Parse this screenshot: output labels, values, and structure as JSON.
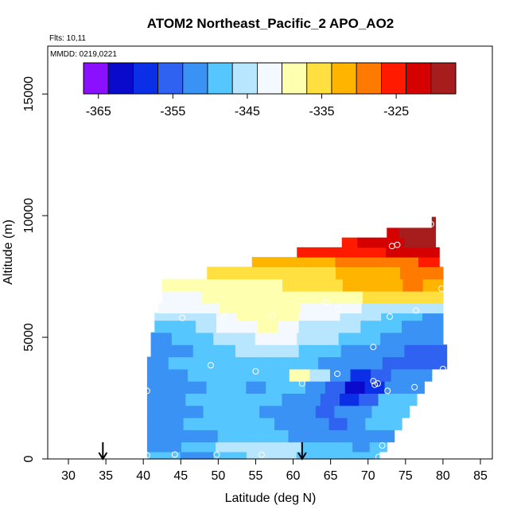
{
  "chart_data": {
    "type": "heatmap",
    "title": "ATOM2 Northeast_Pacific_2 APO_AO2",
    "flights_label": "Flts: 10,11",
    "dates_label": "MMDD: 0219,0221",
    "xlabel": "Latitude (deg N)",
    "ylabel": "Altitude (m)",
    "xlim": [
      30,
      85
    ],
    "ylim": [
      0,
      17000
    ],
    "x_ticks": [
      30,
      35,
      40,
      45,
      50,
      55,
      60,
      65,
      70,
      75,
      80,
      85
    ],
    "x_tick_labels": [
      "30",
      "35",
      "40",
      "45",
      "50",
      "55",
      "60",
      "65",
      "70",
      "75",
      "80",
      "85"
    ],
    "y_ticks": [
      0,
      5000,
      10000,
      15000
    ],
    "y_tick_labels": [
      "0",
      "5000",
      "10000",
      "15000"
    ],
    "colorbar": {
      "range": [
        -367,
        -317
      ],
      "colors": [
        "#8b10ff",
        "#0a0acc",
        "#0a2fe6",
        "#2f62f0",
        "#3a92f5",
        "#56c6ff",
        "#b8e6ff",
        "#f4f9ff",
        "#ffffb0",
        "#ffe040",
        "#ffb400",
        "#ff7a00",
        "#ff1a00",
        "#d50000",
        "#a71c1c"
      ],
      "ticks": [
        -365,
        -355,
        -345,
        -335,
        -325
      ],
      "tick_labels": [
        "-365",
        "-355",
        "-345",
        "-335",
        "-325"
      ]
    },
    "layers": [
      {
        "alt": [
          0,
          300
        ],
        "lat": [
          40.5,
          71.5
        ],
        "values": [
          -350,
          -350,
          -351,
          -352,
          -349,
          -348,
          -347,
          -346,
          -347,
          -349,
          -350,
          -350,
          -349,
          -350
        ]
      },
      {
        "alt": [
          300,
          700
        ],
        "lat": [
          40.5,
          72.5
        ],
        "values": [
          -352,
          -352,
          -350,
          -348,
          -346,
          -345,
          -344,
          -345,
          -347,
          -348,
          -349,
          -350,
          -351,
          -350
        ]
      },
      {
        "alt": [
          700,
          1200
        ],
        "lat": [
          40.5,
          73.5
        ],
        "values": [
          -353,
          -353,
          -352,
          -351,
          -350,
          -349,
          -349,
          -350,
          -351,
          -352,
          -353,
          -353,
          -352,
          -351
        ]
      },
      {
        "alt": [
          1200,
          1700
        ],
        "lat": [
          40.5,
          74.5
        ],
        "values": [
          -352,
          -351,
          -350,
          -350,
          -349,
          -350,
          -350,
          -351,
          -352,
          -353,
          -354,
          -353,
          -350,
          -349
        ]
      },
      {
        "alt": [
          1700,
          2200
        ],
        "lat": [
          40.5,
          75.5
        ],
        "values": [
          -352,
          -351,
          -351,
          -350,
          -350,
          -350,
          -351,
          -352,
          -353,
          -354,
          -353,
          -352,
          -350,
          -349
        ]
      },
      {
        "alt": [
          2200,
          2700
        ],
        "lat": [
          40.5,
          76.5
        ],
        "values": [
          -351,
          -351,
          -350,
          -349,
          -349,
          -350,
          -350,
          -352,
          -353,
          -356,
          -360,
          -357,
          -350,
          -349
        ]
      },
      {
        "alt": [
          2700,
          3200
        ],
        "lat": [
          40.5,
          77.5
        ],
        "values": [
          -352,
          -351,
          -351,
          -350,
          -350,
          -351,
          -350,
          -349,
          -351,
          -356,
          -362,
          -358,
          -351,
          -352
        ]
      },
      {
        "alt": [
          3200,
          3700
        ],
        "lat": [
          40.5,
          78.5
        ],
        "values": [
          -351,
          -351,
          -350,
          -350,
          -350,
          -350,
          -349,
          -339,
          -344,
          -352,
          -358,
          -354,
          -352,
          -353
        ]
      },
      {
        "alt": [
          3700,
          4200
        ],
        "lat": [
          40.5,
          80.5
        ],
        "values": [
          -351,
          -350,
          -350,
          -349,
          -349,
          -348,
          -349,
          -350,
          -351,
          -352,
          -353,
          -354,
          -355,
          -356
        ]
      },
      {
        "alt": [
          4200,
          4700
        ],
        "lat": [
          41,
          80.5
        ],
        "values": [
          -352,
          -351,
          -350,
          -348,
          -346,
          -344,
          -346,
          -348,
          -350,
          -351,
          -352,
          -353,
          -354,
          -355
        ]
      },
      {
        "alt": [
          4700,
          5200
        ],
        "lat": [
          41,
          80
        ],
        "values": [
          -351,
          -350,
          -348,
          -346,
          -344,
          -342,
          -343,
          -345,
          -347,
          -349,
          -350,
          -351,
          -352,
          -353
        ]
      },
      {
        "alt": [
          5200,
          5700
        ],
        "lat": [
          41.5,
          80
        ],
        "values": [
          -349,
          -348,
          -346,
          -343,
          -341,
          -340,
          -342,
          -344,
          -345,
          -346,
          -348,
          -350,
          -352,
          -353
        ]
      },
      {
        "alt": [
          5700,
          6000
        ],
        "lat": [
          41.5,
          80
        ],
        "values": [
          -346,
          -345,
          -344,
          -342,
          -340,
          -338,
          -339,
          -341,
          -342,
          -344,
          -346,
          -348,
          -350,
          -352
        ]
      },
      {
        "alt": [
          6000,
          6400
        ],
        "lat": [
          42,
          80
        ],
        "values": [
          -343,
          -342,
          -341,
          -340,
          -339,
          -339,
          -340,
          -341,
          -342,
          -343,
          -344,
          -345,
          -346,
          -347
        ]
      },
      {
        "alt": [
          6400,
          6900
        ],
        "lat": [
          42.5,
          80
        ],
        "values": [
          -341,
          -341,
          -340,
          -340,
          -339,
          -339,
          -339,
          -339,
          -339,
          -338,
          -337,
          -336,
          -336,
          -336
        ]
      },
      {
        "alt": [
          6900,
          7400
        ],
        "lat": [
          42.5,
          80
        ],
        "values": [
          -339,
          -339,
          -339,
          -339,
          -338,
          -338,
          -337,
          -336,
          -335,
          -333,
          -332,
          -331,
          -330,
          -331
        ]
      },
      {
        "alt": [
          7400,
          7900
        ],
        "lat": [
          48.5,
          80
        ],
        "values": [
          -336,
          -336,
          -336,
          -335,
          -335,
          -334,
          -333,
          -332,
          -331,
          -330,
          -329
        ]
      },
      {
        "alt": [
          7900,
          8300
        ],
        "lat": [
          54.5,
          79.5
        ],
        "values": [
          -332,
          -332,
          -331,
          -331,
          -330,
          -330,
          -329,
          -328,
          -327
        ]
      },
      {
        "alt": [
          8300,
          8700
        ],
        "lat": [
          60.5,
          79.5
        ],
        "values": [
          -327,
          -327,
          -326,
          -325,
          -324,
          -323,
          -322,
          -321
        ]
      },
      {
        "alt": [
          8700,
          9100
        ],
        "lat": [
          66.5,
          79
        ],
        "values": [
          -324,
          -323,
          -322,
          -321,
          -320,
          -320
        ]
      },
      {
        "alt": [
          9100,
          9500
        ],
        "lat": [
          72.5,
          79
        ],
        "values": [
          -321,
          -320,
          -320,
          -319
        ]
      },
      {
        "alt": [
          9500,
          9950
        ],
        "lat": [
          78.5,
          79
        ],
        "values": [
          -320
        ]
      }
    ],
    "sample_points": [
      [
        40.5,
        150
      ],
      [
        44.2,
        180
      ],
      [
        49.8,
        170
      ],
      [
        55.8,
        170
      ],
      [
        71.4,
        80
      ],
      [
        71.9,
        550
      ],
      [
        40.5,
        2800
      ],
      [
        61.2,
        3100
      ],
      [
        65.9,
        3500
      ],
      [
        70.7,
        3200
      ],
      [
        70.9,
        3050
      ],
      [
        71.3,
        3100
      ],
      [
        72.6,
        2800
      ],
      [
        76.2,
        2950
      ],
      [
        49.0,
        3850
      ],
      [
        55.0,
        3600
      ],
      [
        70.7,
        4600
      ],
      [
        80.0,
        3700
      ],
      [
        45.2,
        5800
      ],
      [
        50.8,
        5800
      ],
      [
        57.2,
        5900
      ],
      [
        64.4,
        6450
      ],
      [
        66.0,
        6150
      ],
      [
        72.9,
        5850
      ],
      [
        76.4,
        6100
      ],
      [
        79.8,
        7000
      ],
      [
        73.2,
        8750
      ],
      [
        73.9,
        8800
      ],
      [
        78.4,
        9650
      ]
    ],
    "arrows_at": [
      34.6,
      61.2
    ]
  }
}
